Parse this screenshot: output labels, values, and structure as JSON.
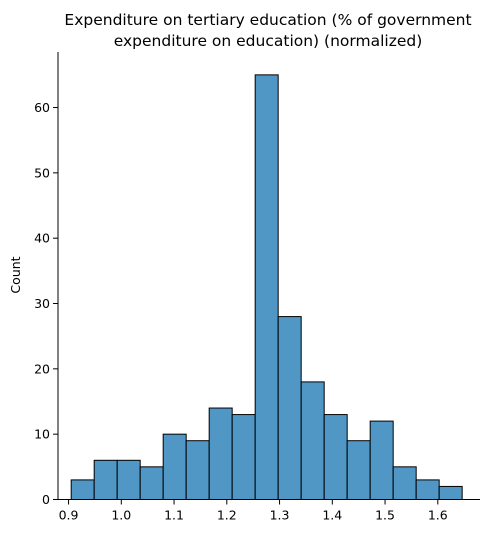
{
  "chart_data": {
    "type": "bar",
    "title_line1": "Expenditure on tertiary education (% of government",
    "title_line2": "expenditure on education) (normalized)",
    "xlabel": "",
    "ylabel": "Count",
    "xlim": [
      0.88,
      1.68
    ],
    "ylim": [
      0,
      68.5
    ],
    "bin_edges": [
      0.905,
      0.9486,
      0.9922,
      1.0358,
      1.0794,
      1.123,
      1.1666,
      1.2102,
      1.2538,
      1.2974,
      1.341,
      1.3846,
      1.4282,
      1.4718,
      1.5154,
      1.559,
      1.6026,
      1.6462
    ],
    "values": [
      3,
      6,
      6,
      5,
      10,
      9,
      14,
      13,
      65,
      28,
      18,
      13,
      9,
      12,
      5,
      3,
      2
    ],
    "x_ticks": [
      0.9,
      1.0,
      1.1,
      1.2,
      1.3,
      1.4,
      1.5,
      1.6
    ],
    "x_tick_labels": [
      "0.9",
      "1.0",
      "1.1",
      "1.2",
      "1.3",
      "1.4",
      "1.5",
      "1.6"
    ],
    "y_ticks": [
      0,
      10,
      20,
      30,
      40,
      50,
      60
    ],
    "y_tick_labels": [
      "0",
      "10",
      "20",
      "30",
      "40",
      "50",
      "60"
    ],
    "grid": false,
    "bar_color": "#5197c6"
  }
}
